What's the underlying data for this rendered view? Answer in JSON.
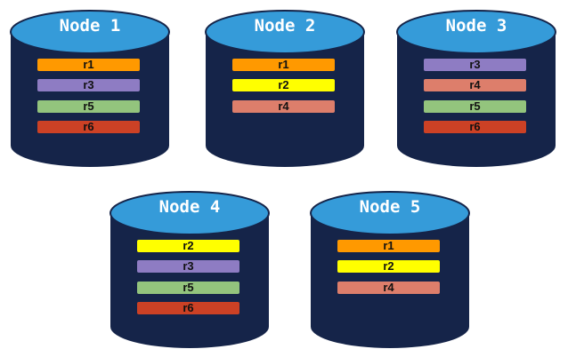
{
  "colors": {
    "cylinder_body": "#152449",
    "cylinder_top": "#359BD9",
    "r1": "#FF9900",
    "r2": "#FFFF00",
    "r3": "#8E7CC3",
    "r4": "#DD7E6B",
    "r5": "#93C47D",
    "r6": "#CC4125"
  },
  "nodes": [
    {
      "title": "Node 1",
      "replicas": [
        "r1",
        "r3",
        "r5",
        "r6"
      ]
    },
    {
      "title": "Node 2",
      "replicas": [
        "r1",
        "r2",
        "r4"
      ]
    },
    {
      "title": "Node 3",
      "replicas": [
        "r3",
        "r4",
        "r5",
        "r6"
      ]
    },
    {
      "title": "Node 4",
      "replicas": [
        "r2",
        "r3",
        "r5",
        "r6"
      ]
    },
    {
      "title": "Node 5",
      "replicas": [
        "r1",
        "r2",
        "r4"
      ]
    }
  ]
}
